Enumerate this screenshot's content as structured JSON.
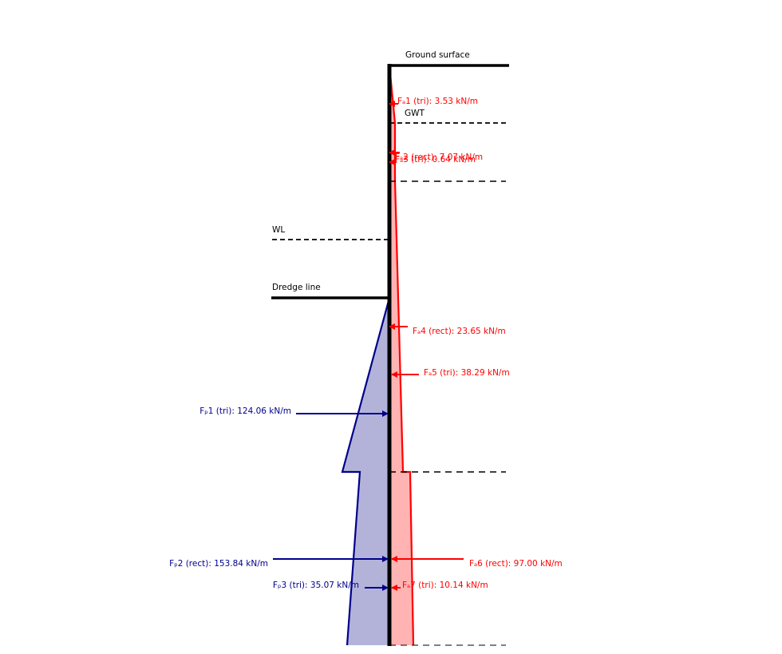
{
  "levels": {
    "ground_surface": "Ground surface",
    "gwt": "GWT",
    "wl": "WL",
    "dredge_line": "Dredge line"
  },
  "active_forces": [
    {
      "id": "Fa1",
      "label": "Fₐ1 (tri): 3.53 kN/m",
      "value_kN_per_m": 3.53,
      "kind": "tri"
    },
    {
      "id": "Fa2",
      "label": "Fₐ2 (rect): 7.07 kN/m",
      "value_kN_per_m": 7.07,
      "kind": "rect"
    },
    {
      "id": "Fa3",
      "label": "Fₐ3 (tri): 0.64 kN/m",
      "value_kN_per_m": 0.64,
      "kind": "tri"
    },
    {
      "id": "Fa4",
      "label": "Fₐ4 (rect): 23.65 kN/m",
      "value_kN_per_m": 23.65,
      "kind": "rect"
    },
    {
      "id": "Fa5",
      "label": "Fₐ5 (tri): 38.29 kN/m",
      "value_kN_per_m": 38.29,
      "kind": "tri"
    },
    {
      "id": "Fa6",
      "label": "Fₐ6 (rect): 97.00 kN/m",
      "value_kN_per_m": 97.0,
      "kind": "rect"
    },
    {
      "id": "Fa7",
      "label": "Fₐ7 (tri): 10.14 kN/m",
      "value_kN_per_m": 10.14,
      "kind": "tri"
    }
  ],
  "passive_forces": [
    {
      "id": "Fp1",
      "label": "Fₚ1 (tri): 124.06 kN/m",
      "value_kN_per_m": 124.06,
      "kind": "tri"
    },
    {
      "id": "Fp2",
      "label": "Fₚ2 (rect): 153.84 kN/m",
      "value_kN_per_m": 153.84,
      "kind": "rect"
    },
    {
      "id": "Fp3",
      "label": "Fₚ3 (tri): 35.07 kN/m",
      "value_kN_per_m": 35.07,
      "kind": "tri"
    }
  ],
  "colors": {
    "wall": "#000000",
    "active_line": "#ff0000",
    "active_fill": "#ffb3b3",
    "passive_line": "#00008b",
    "passive_fill": "#b3b3d9"
  }
}
